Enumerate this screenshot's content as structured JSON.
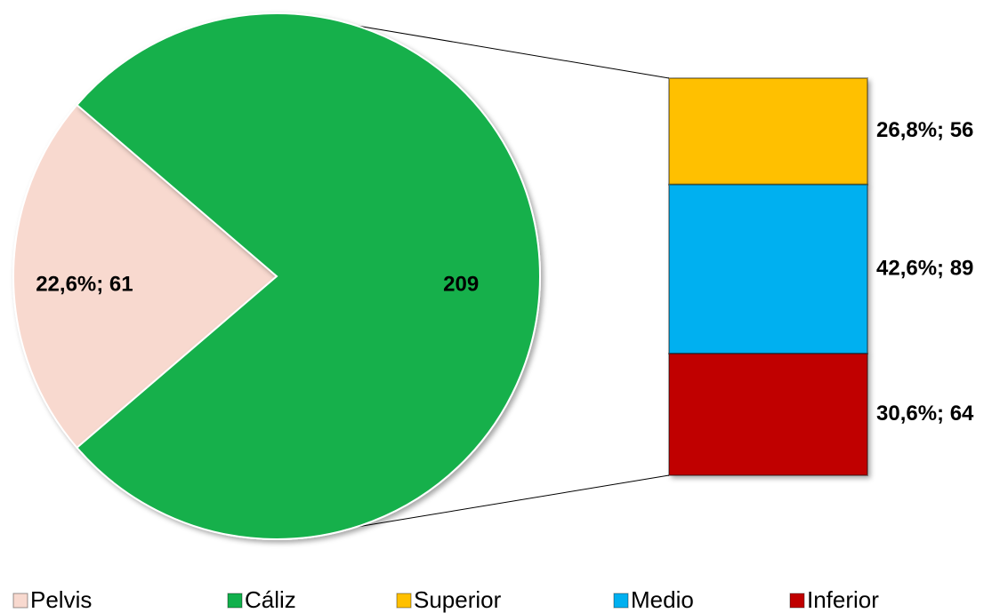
{
  "chart_data": {
    "type": "pie",
    "categories": [
      "Pelvis",
      "Cáliz"
    ],
    "values": [
      61,
      209
    ],
    "value_labels": [
      "22,6%; 61",
      "209"
    ],
    "colors": [
      "#f8d9cf",
      "#12b04c"
    ],
    "breakdown": {
      "categories": [
        "Superior",
        "Medio",
        "Inferior"
      ],
      "values": [
        56,
        89,
        64
      ],
      "value_labels": [
        "26,8%; 56",
        "42,6%; 89",
        "30,6%; 64"
      ],
      "colors": [
        "#ffc000",
        "#00b0f0",
        "#c00000"
      ]
    },
    "legend": "bottom"
  }
}
